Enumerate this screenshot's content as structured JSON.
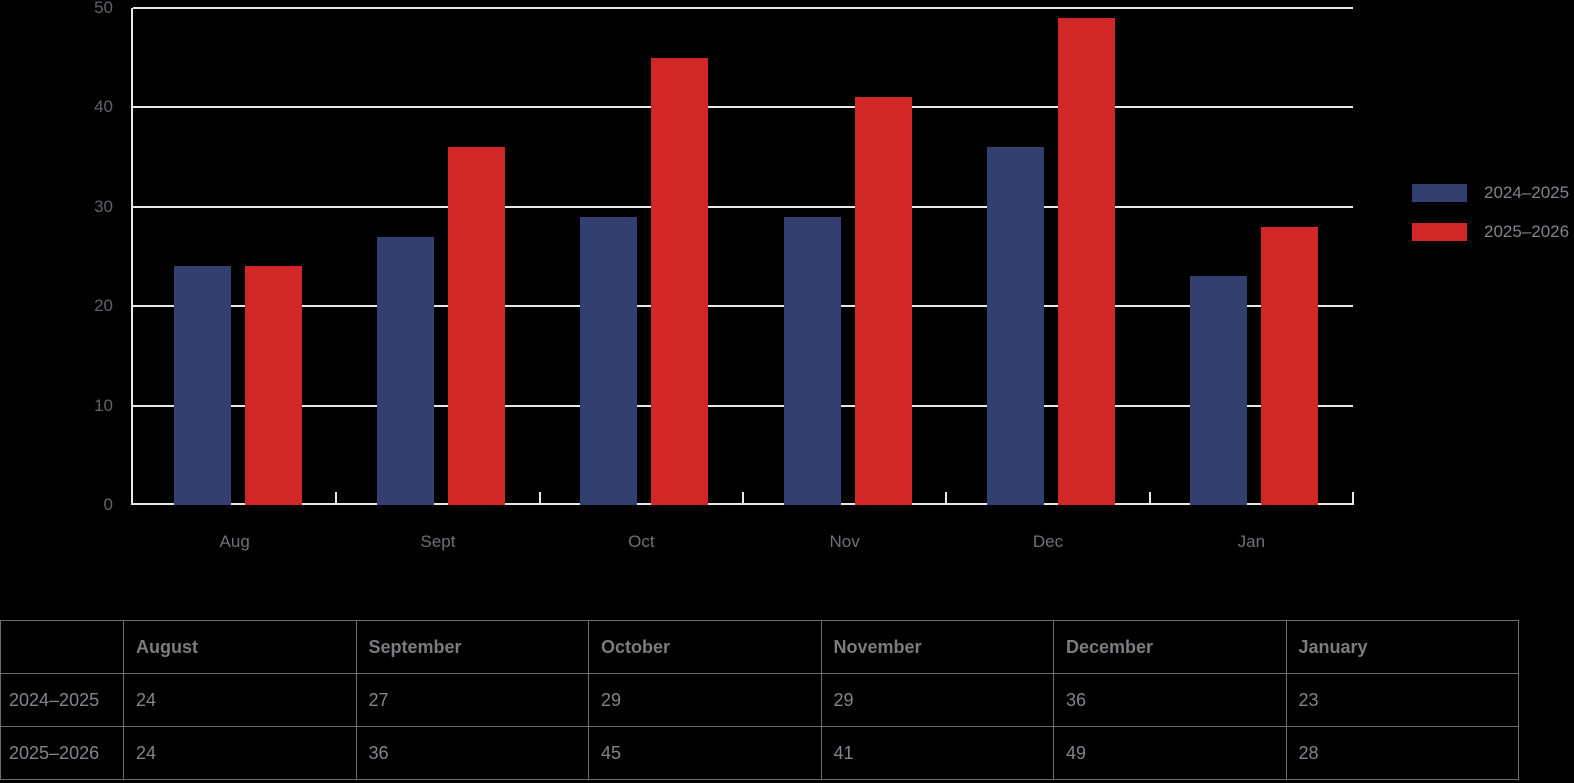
{
  "chart_data": {
    "type": "bar",
    "title": "",
    "categories": [
      "Aug",
      "Sept",
      "Oct",
      "Nov",
      "Dec",
      "Jan"
    ],
    "series": [
      {
        "name": "2024–2025",
        "color": "#333F6E",
        "values": [
          24,
          27,
          29,
          29,
          36,
          23
        ]
      },
      {
        "name": "2025–2026",
        "color": "#D22727",
        "values": [
          24,
          36,
          45,
          41,
          49,
          28
        ]
      }
    ],
    "xlabel": "",
    "ylabel": "",
    "ylim": [
      0,
      50
    ],
    "yticks": [
      0,
      10,
      20,
      30,
      40,
      50
    ],
    "grid": "horizontal",
    "legend_position": "right",
    "gridline_color": "#E7E7EA",
    "label_color": "#707174"
  },
  "table": {
    "columns": [
      "",
      "August",
      "September",
      "October",
      "November",
      "December",
      "January"
    ],
    "rows": [
      {
        "label": "2024–2025",
        "values": [
          "24",
          "27",
          "29",
          "29",
          "36",
          "23"
        ]
      },
      {
        "label": "2025–2026",
        "values": [
          "24",
          "36",
          "45",
          "41",
          "49",
          "28"
        ]
      }
    ]
  }
}
